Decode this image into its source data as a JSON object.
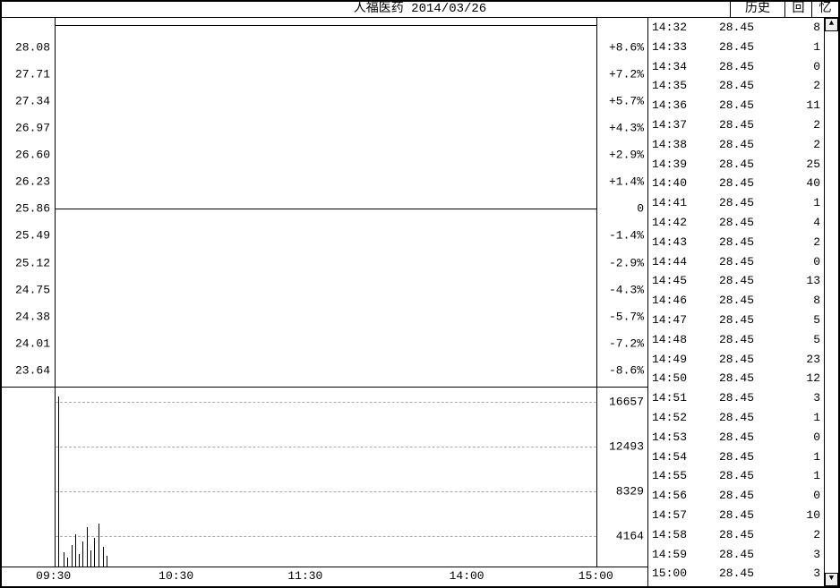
{
  "header": {
    "title": "人福医药 2014/03/26",
    "right_label_1": "历史",
    "right_label_2": "回",
    "right_label_3": "忆"
  },
  "price_chart": {
    "type": "line",
    "y_left_ticks": [
      "28.08",
      "27.71",
      "27.34",
      "26.97",
      "26.60",
      "26.23",
      "25.86",
      "25.49",
      "25.12",
      "24.75",
      "24.38",
      "24.01",
      "23.64"
    ],
    "y_right_ticks": [
      "+8.6%",
      "+7.2%",
      "+5.7%",
      "+4.3%",
      "+2.9%",
      "+1.4%",
      "0",
      "-1.4%",
      "-2.9%",
      "-4.3%",
      "-5.7%",
      "-7.2%",
      "-8.6%"
    ],
    "y_positions_pct": [
      8,
      15.3,
      22.6,
      29.9,
      37.2,
      44.5,
      51.8,
      59.1,
      66.4,
      73.7,
      81.0,
      88.3,
      95.6
    ],
    "midline_pct": 51.8,
    "background_color": "#ffffff",
    "grid_color": "#aaaaaa",
    "line_color": "#000000"
  },
  "volume_chart": {
    "type": "bar",
    "y_ticks": [
      "16657",
      "12493",
      "8329",
      "4164"
    ],
    "y_positions_pct": [
      8,
      33,
      58,
      83
    ],
    "bars": [
      {
        "x_pct": 0.5,
        "h_pct": 95
      },
      {
        "x_pct": 1.5,
        "h_pct": 8
      },
      {
        "x_pct": 2.2,
        "h_pct": 5
      },
      {
        "x_pct": 3.0,
        "h_pct": 12
      },
      {
        "x_pct": 3.6,
        "h_pct": 18
      },
      {
        "x_pct": 4.3,
        "h_pct": 7
      },
      {
        "x_pct": 5.0,
        "h_pct": 14
      },
      {
        "x_pct": 5.8,
        "h_pct": 22
      },
      {
        "x_pct": 6.5,
        "h_pct": 9
      },
      {
        "x_pct": 7.2,
        "h_pct": 16
      },
      {
        "x_pct": 8.0,
        "h_pct": 24
      },
      {
        "x_pct": 8.8,
        "h_pct": 11
      },
      {
        "x_pct": 9.5,
        "h_pct": 6
      }
    ],
    "bar_color": "#000000"
  },
  "x_axis": {
    "ticks": [
      {
        "label": "09:30",
        "pos_pct": 8
      },
      {
        "label": "10:30",
        "pos_pct": 27
      },
      {
        "label": "11:30",
        "pos_pct": 47
      },
      {
        "label": "14:00",
        "pos_pct": 72
      },
      {
        "label": "15:00",
        "pos_pct": 92
      }
    ]
  },
  "trades": [
    {
      "time": "14:32",
      "price": "28.45",
      "vol": "8"
    },
    {
      "time": "14:33",
      "price": "28.45",
      "vol": "1"
    },
    {
      "time": "14:34",
      "price": "28.45",
      "vol": "0"
    },
    {
      "time": "14:35",
      "price": "28.45",
      "vol": "2"
    },
    {
      "time": "14:36",
      "price": "28.45",
      "vol": "11"
    },
    {
      "time": "14:37",
      "price": "28.45",
      "vol": "2"
    },
    {
      "time": "14:38",
      "price": "28.45",
      "vol": "2"
    },
    {
      "time": "14:39",
      "price": "28.45",
      "vol": "25"
    },
    {
      "time": "14:40",
      "price": "28.45",
      "vol": "40"
    },
    {
      "time": "14:41",
      "price": "28.45",
      "vol": "1"
    },
    {
      "time": "14:42",
      "price": "28.45",
      "vol": "4"
    },
    {
      "time": "14:43",
      "price": "28.45",
      "vol": "2"
    },
    {
      "time": "14:44",
      "price": "28.45",
      "vol": "0"
    },
    {
      "time": "14:45",
      "price": "28.45",
      "vol": "13"
    },
    {
      "time": "14:46",
      "price": "28.45",
      "vol": "8"
    },
    {
      "time": "14:47",
      "price": "28.45",
      "vol": "5"
    },
    {
      "time": "14:48",
      "price": "28.45",
      "vol": "5"
    },
    {
      "time": "14:49",
      "price": "28.45",
      "vol": "23"
    },
    {
      "time": "14:50",
      "price": "28.45",
      "vol": "12"
    },
    {
      "time": "14:51",
      "price": "28.45",
      "vol": "3"
    },
    {
      "time": "14:52",
      "price": "28.45",
      "vol": "1"
    },
    {
      "time": "14:53",
      "price": "28.45",
      "vol": "0"
    },
    {
      "time": "14:54",
      "price": "28.45",
      "vol": "1"
    },
    {
      "time": "14:55",
      "price": "28.45",
      "vol": "1"
    },
    {
      "time": "14:56",
      "price": "28.45",
      "vol": "0"
    },
    {
      "time": "14:57",
      "price": "28.45",
      "vol": "10"
    },
    {
      "time": "14:58",
      "price": "28.45",
      "vol": "2"
    },
    {
      "time": "14:59",
      "price": "28.45",
      "vol": "3"
    },
    {
      "time": "15:00",
      "price": "28.45",
      "vol": "3"
    }
  ],
  "scroll": {
    "up": "▲",
    "down": "▼"
  }
}
